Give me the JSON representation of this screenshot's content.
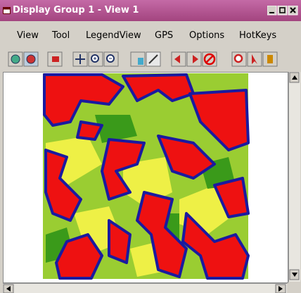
{
  "title": "Display Group 1 - View 1",
  "menu": [
    "View",
    "Tool",
    "LegendView",
    "GPS",
    "Options",
    "HotKeys"
  ]
}
